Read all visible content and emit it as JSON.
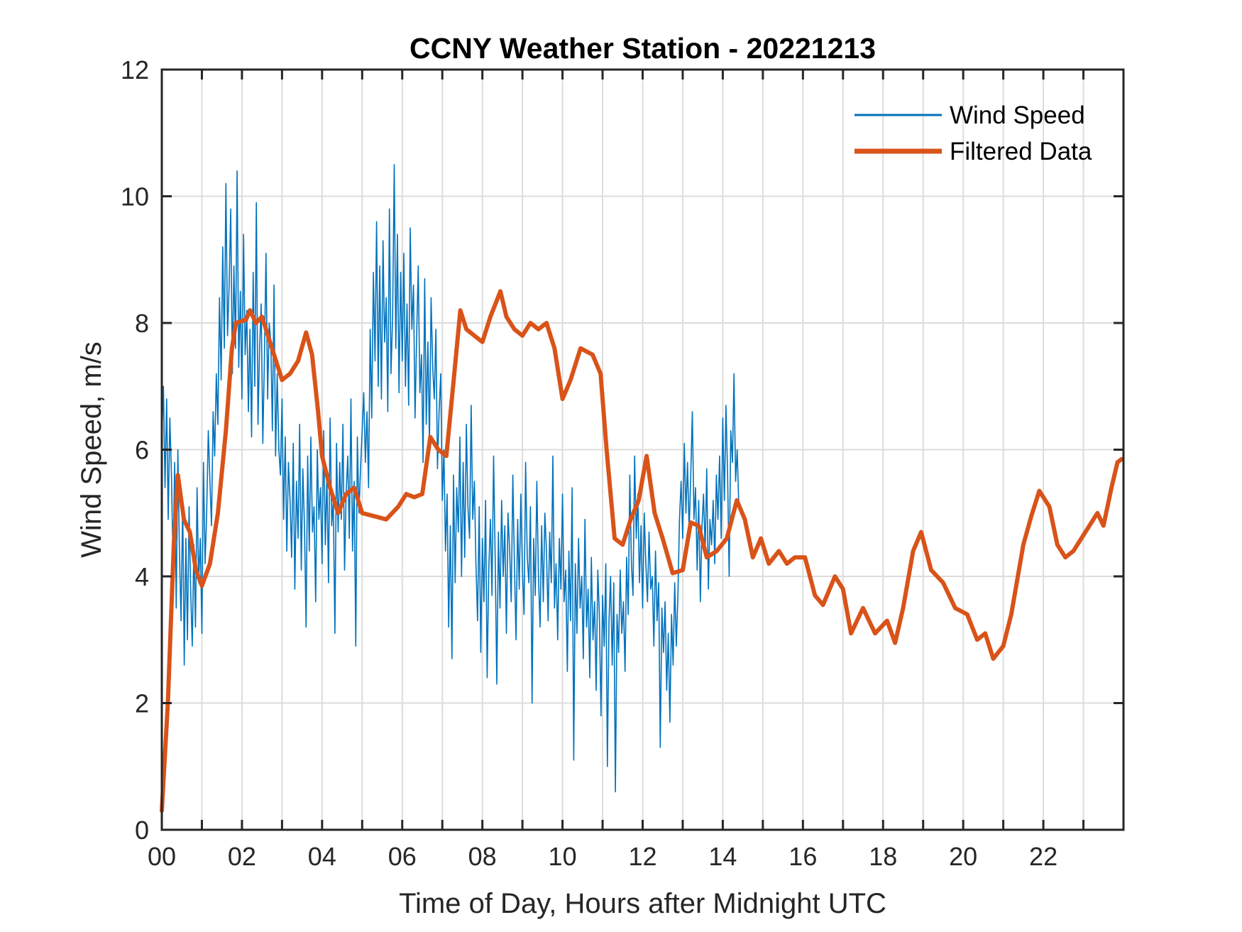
{
  "chart_data": {
    "type": "line",
    "title": "CCNY Weather Station - 20221213",
    "xlabel": "Time of Day, Hours after Midnight UTC",
    "ylabel": "Wind Speed, m/s",
    "xlim": [
      0,
      24
    ],
    "ylim": [
      0,
      12
    ],
    "grid": true,
    "x_ticks": [
      0,
      2,
      4,
      6,
      8,
      10,
      12,
      14,
      16,
      18,
      20,
      22
    ],
    "x_tick_labels": [
      "00",
      "02",
      "04",
      "06",
      "08",
      "10",
      "12",
      "14",
      "16",
      "18",
      "20",
      "22"
    ],
    "x_minor_gridlines_every_hours": 1,
    "y_ticks": [
      0,
      2,
      4,
      6,
      8,
      10,
      12
    ],
    "y_tick_labels": [
      "0",
      "2",
      "4",
      "6",
      "8",
      "10",
      "12"
    ],
    "legend": {
      "position": "top-right",
      "entries": [
        {
          "label": "Wind Speed",
          "color": "#0072BD"
        },
        {
          "label": "Filtered Data",
          "color": "#D95319"
        }
      ]
    },
    "series": [
      {
        "name": "Wind Speed",
        "color": "#0072BD",
        "x_start": 0,
        "x_step": 0.04,
        "values_approx": [
          6.2,
          7.0,
          5.4,
          6.8,
          4.9,
          6.5,
          5.6,
          4.2,
          5.8,
          3.5,
          6.0,
          4.4,
          3.3,
          5.2,
          2.6,
          4.6,
          3.0,
          5.1,
          3.8,
          2.9,
          4.5,
          3.2,
          5.4,
          3.9,
          4.6,
          3.1,
          5.8,
          4.2,
          5.0,
          6.3,
          5.5,
          4.8,
          6.6,
          5.9,
          7.2,
          6.4,
          8.4,
          7.1,
          9.2,
          7.6,
          10.2,
          7.8,
          8.6,
          9.8,
          7.2,
          8.9,
          7.6,
          10.4,
          7.3,
          8.5,
          6.8,
          9.4,
          7.5,
          8.2,
          6.6,
          7.9,
          6.2,
          8.8,
          7.0,
          9.9,
          6.4,
          7.6,
          8.3,
          6.1,
          7.4,
          9.1,
          6.8,
          8.0,
          7.7,
          6.3,
          8.6,
          5.9,
          7.2,
          6.0,
          5.6,
          6.8,
          4.9,
          6.2,
          4.4,
          5.8,
          5.2,
          4.3,
          6.1,
          3.8,
          5.5,
          4.6,
          6.4,
          4.1,
          5.7,
          4.8,
          3.2,
          5.9,
          4.4,
          6.2,
          4.7,
          5.1,
          3.6,
          6.0,
          4.9,
          5.4,
          4.2,
          6.3,
          4.5,
          5.6,
          3.9,
          6.5,
          4.8,
          5.2,
          3.1,
          6.1,
          4.7,
          5.8,
          4.9,
          6.4,
          4.1,
          5.3,
          5.9,
          4.6,
          6.8,
          4.4,
          5.5,
          2.9,
          6.2,
          5.0,
          5.7,
          6.3,
          6.9,
          5.8,
          6.6,
          5.4,
          7.9,
          6.5,
          8.8,
          7.4,
          9.6,
          7.0,
          8.9,
          6.8,
          9.3,
          7.7,
          8.4,
          6.6,
          9.8,
          7.2,
          8.1,
          10.5,
          7.6,
          9.4,
          6.9,
          8.8,
          7.4,
          9.1,
          7.0,
          8.3,
          6.7,
          9.5,
          7.9,
          8.6,
          6.5,
          7.8,
          8.9,
          6.9,
          7.5,
          5.8,
          8.7,
          6.4,
          7.7,
          6.1,
          8.4,
          7.3,
          6.8,
          7.9,
          5.7,
          6.6,
          7.2,
          5.2,
          6.0,
          4.4,
          5.3,
          3.2,
          4.8,
          2.7,
          5.6,
          3.9,
          5.4,
          4.7,
          6.2,
          4.0,
          5.8,
          4.3,
          6.4,
          5.1,
          4.6,
          6.7,
          4.9,
          5.5,
          4.2,
          3.3,
          5.1,
          2.8,
          4.6,
          3.6,
          5.2,
          2.4,
          4.1,
          4.9,
          3.7,
          5.9,
          4.3,
          2.3,
          4.7,
          3.5,
          5.2,
          4.0,
          4.8,
          3.1,
          5.0,
          4.4,
          3.6,
          5.6,
          4.2,
          3.0,
          4.9,
          3.8,
          5.3,
          4.1,
          3.4,
          5.8,
          4.3,
          3.9,
          5.1,
          2.0,
          4.6,
          3.7,
          5.5,
          4.0,
          3.2,
          4.8,
          3.6,
          5.0,
          4.4,
          3.3,
          4.7,
          3.9,
          5.9,
          3.5,
          4.2,
          3.0,
          4.6,
          3.8,
          5.3,
          3.6,
          4.1,
          2.5,
          4.4,
          3.3,
          5.4,
          1.1,
          4.2,
          3.1,
          4.6,
          3.5,
          4.0,
          2.7,
          4.9,
          3.2,
          3.8,
          2.4,
          4.3,
          3.0,
          3.6,
          2.2,
          4.1,
          3.4,
          1.8,
          3.7,
          2.9,
          4.2,
          1.0,
          3.3,
          4.0,
          2.6,
          3.9,
          0.6,
          3.4,
          2.8,
          4.1,
          3.1,
          3.6,
          2.5,
          4.3,
          3.4,
          5.6,
          4.2,
          3.7,
          5.9,
          4.6,
          5.3,
          3.9,
          4.8,
          3.5,
          5.0,
          4.2,
          3.6,
          4.7,
          3.8,
          4.0,
          2.9,
          4.4,
          3.3,
          3.9,
          1.3,
          3.5,
          2.8,
          3.6,
          2.2,
          3.1,
          1.7,
          3.4,
          2.6,
          3.9,
          2.9,
          3.7,
          4.9,
          5.5,
          4.6,
          6.1,
          5.0,
          5.8,
          4.7,
          5.6,
          6.6,
          4.9,
          5.4,
          4.1,
          5.2,
          3.6,
          4.8,
          5.3,
          4.4,
          5.7,
          3.8,
          4.9,
          4.5,
          5.2,
          4.2,
          5.6,
          4.9,
          5.9,
          4.6,
          6.5,
          5.2,
          6.7,
          5.6,
          4.0,
          6.3,
          5.8,
          7.2,
          5.5,
          6.0,
          5.1
        ]
      },
      {
        "name": "Filtered Data",
        "color": "#D95319",
        "x": [
          0.0,
          0.15,
          0.3,
          0.4,
          0.55,
          0.7,
          0.85,
          1.0,
          1.2,
          1.4,
          1.6,
          1.75,
          1.85,
          2.1,
          2.2,
          2.35,
          2.5,
          2.8,
          3.0,
          3.2,
          3.4,
          3.6,
          3.75,
          3.9,
          4.0,
          4.2,
          4.4,
          4.6,
          4.8,
          5.0,
          5.3,
          5.6,
          5.9,
          6.1,
          6.3,
          6.5,
          6.7,
          6.9,
          7.1,
          7.3,
          7.45,
          7.6,
          7.8,
          8.0,
          8.2,
          8.45,
          8.6,
          8.8,
          9.0,
          9.2,
          9.4,
          9.6,
          9.8,
          10.0,
          10.2,
          10.45,
          10.75,
          10.95,
          11.1,
          11.3,
          11.5,
          11.7,
          11.9,
          12.1,
          12.3,
          12.5,
          12.75,
          13.0,
          13.2,
          13.4,
          13.6,
          13.85,
          14.1,
          14.35,
          14.55,
          14.75,
          14.95,
          15.15,
          15.4,
          15.6,
          15.8,
          16.05,
          16.3,
          16.5,
          16.8,
          17.0,
          17.2,
          17.5,
          17.8,
          18.1,
          18.3,
          18.5,
          18.75,
          18.95,
          19.2,
          19.5,
          19.8,
          20.1,
          20.35,
          20.55,
          20.75,
          21.0,
          21.2,
          21.5,
          21.7,
          21.9,
          22.15,
          22.35,
          22.55,
          22.75,
          22.95,
          23.15,
          23.35,
          23.5,
          23.7,
          23.85,
          23.95
        ],
        "values": [
          0.3,
          2.0,
          4.5,
          5.6,
          4.9,
          4.7,
          4.1,
          3.85,
          4.2,
          5.0,
          6.3,
          7.6,
          8.0,
          8.05,
          8.2,
          8.0,
          8.1,
          7.5,
          7.1,
          7.2,
          7.4,
          7.85,
          7.5,
          6.6,
          5.9,
          5.4,
          5.0,
          5.3,
          5.4,
          5.0,
          4.95,
          4.9,
          5.1,
          5.3,
          5.25,
          5.3,
          6.2,
          6.0,
          5.9,
          7.2,
          8.2,
          7.9,
          7.8,
          7.7,
          8.1,
          8.5,
          8.1,
          7.9,
          7.8,
          8.0,
          7.9,
          8.0,
          7.6,
          6.8,
          7.1,
          7.6,
          7.5,
          7.2,
          6.0,
          4.6,
          4.5,
          4.9,
          5.2,
          5.9,
          5.0,
          4.6,
          4.05,
          4.1,
          4.85,
          4.8,
          4.3,
          4.4,
          4.6,
          5.2,
          4.9,
          4.3,
          4.6,
          4.2,
          4.4,
          4.2,
          4.3,
          4.3,
          3.7,
          3.55,
          4.0,
          3.8,
          3.1,
          3.5,
          3.1,
          3.3,
          2.95,
          3.5,
          4.4,
          4.7,
          4.1,
          3.9,
          3.5,
          3.4,
          3.0,
          3.1,
          2.7,
          2.9,
          3.4,
          4.5,
          4.95,
          5.35,
          5.1,
          4.5,
          4.3,
          4.4,
          4.6,
          4.8,
          5.0,
          4.8,
          5.4,
          5.8,
          5.85
        ]
      }
    ]
  }
}
